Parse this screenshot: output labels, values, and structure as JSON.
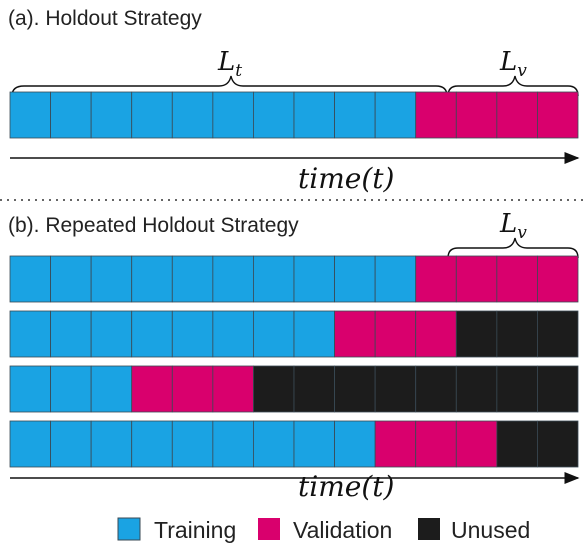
{
  "colors": {
    "training": "#1AA3E3",
    "validation": "#D9006D",
    "unused": "#1C1C1C",
    "block_divider": "#3a4a55",
    "text": "#111111"
  },
  "section_a": {
    "title": "(a). Holdout Strategy",
    "brace_train_label": "L",
    "brace_train_sub": "t",
    "brace_val_label": "L",
    "brace_val_sub": "v",
    "bar": [
      "T",
      "T",
      "T",
      "T",
      "T",
      "T",
      "T",
      "T",
      "T",
      "T",
      "V",
      "V",
      "V",
      "V"
    ],
    "time_label": "time(t)"
  },
  "section_b": {
    "title": "(b). Repeated Holdout Strategy",
    "brace_val_label": "L",
    "brace_val_sub": "v",
    "bars": [
      [
        "T",
        "T",
        "T",
        "T",
        "T",
        "T",
        "T",
        "T",
        "T",
        "T",
        "V",
        "V",
        "V",
        "V"
      ],
      [
        "T",
        "T",
        "T",
        "T",
        "T",
        "T",
        "T",
        "T",
        "V",
        "V",
        "V",
        "U",
        "U",
        "U"
      ],
      [
        "T",
        "T",
        "T",
        "V",
        "V",
        "V",
        "U",
        "U",
        "U",
        "U",
        "U",
        "U",
        "U",
        "U"
      ],
      [
        "T",
        "T",
        "T",
        "T",
        "T",
        "T",
        "T",
        "T",
        "T",
        "V",
        "V",
        "V",
        "U",
        "U"
      ]
    ],
    "time_label": "time(t)"
  },
  "legend": {
    "training": "Training",
    "validation": "Validation",
    "unused": "Unused"
  }
}
